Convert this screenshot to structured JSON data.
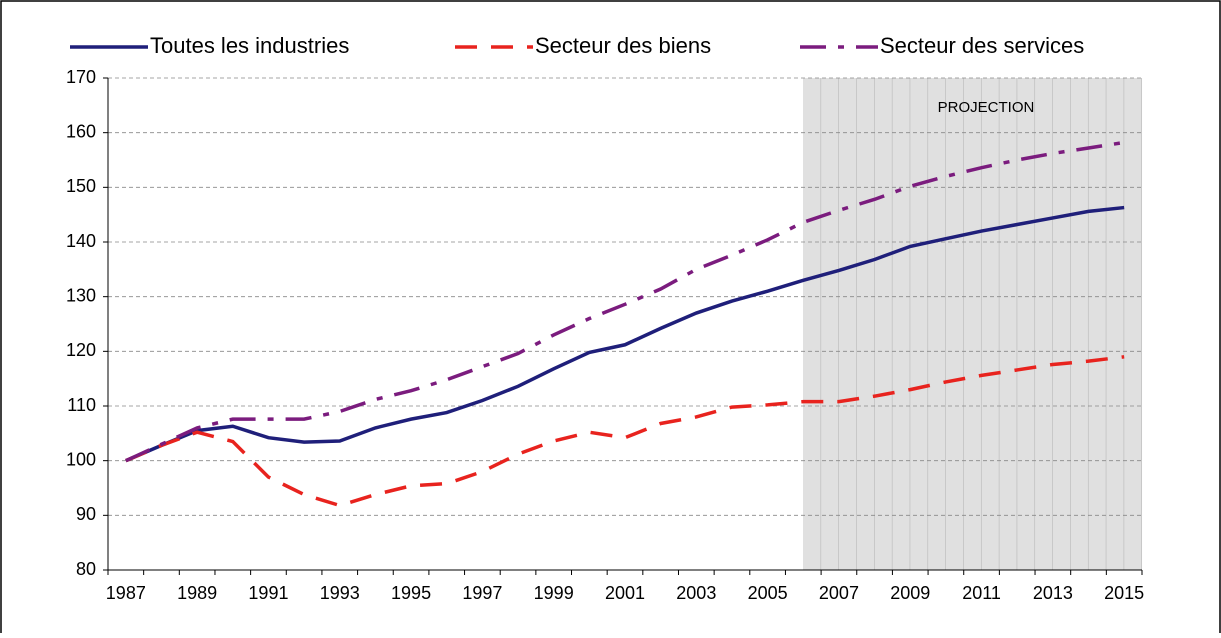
{
  "chart_data": {
    "type": "line",
    "annotation": "PROJECTION",
    "categories": [
      "1987",
      null,
      "1989",
      null,
      "1991",
      null,
      "1993",
      null,
      "1995",
      null,
      "1997",
      null,
      "1999",
      null,
      "2001",
      null,
      "2003",
      null,
      "2005",
      null,
      "2007",
      null,
      "2009",
      null,
      "2011",
      null,
      "2013",
      null,
      "2015"
    ],
    "series": [
      {
        "name": "Toutes les industries",
        "color": "#1f1f7a",
        "dash": "solid",
        "values": [
          100,
          102.8,
          105.5,
          106.3,
          104.2,
          103.4,
          103.6,
          106,
          107.6,
          108.8,
          111,
          113.6,
          116.8,
          119.8,
          121.2,
          124.2,
          127,
          129.2,
          131,
          133,
          134.8,
          136.8,
          139.2,
          140.6,
          142,
          143.2,
          144.4,
          145.6,
          146.3
        ]
      },
      {
        "name": "Secteur des biens",
        "color": "#e8231e",
        "dash": "dash",
        "values": [
          100,
          102.8,
          105.2,
          103.5,
          97,
          93.8,
          91.8,
          93.8,
          95.4,
          95.8,
          98,
          101.2,
          103.6,
          105.2,
          104.2,
          106.8,
          108,
          109.8,
          110.2,
          110.8,
          110.8,
          111.8,
          113,
          114.4,
          115.6,
          116.6,
          117.6,
          118.2,
          119
        ]
      },
      {
        "name": "Secteur des services",
        "color": "#7b1c7e",
        "dash": "dashdot",
        "values": [
          100,
          103,
          106,
          107.6,
          107.6,
          107.6,
          109,
          111.2,
          112.8,
          114.8,
          117.2,
          119.6,
          123,
          126,
          128.6,
          131.4,
          135,
          137.6,
          140.4,
          143.6,
          145.8,
          147.8,
          150.2,
          152,
          153.6,
          155,
          156.2,
          157.2,
          158.2
        ]
      }
    ],
    "ylim": [
      80,
      170
    ],
    "yticks": [
      80,
      90,
      100,
      110,
      120,
      130,
      140,
      150,
      160,
      170
    ],
    "grid": true
  }
}
